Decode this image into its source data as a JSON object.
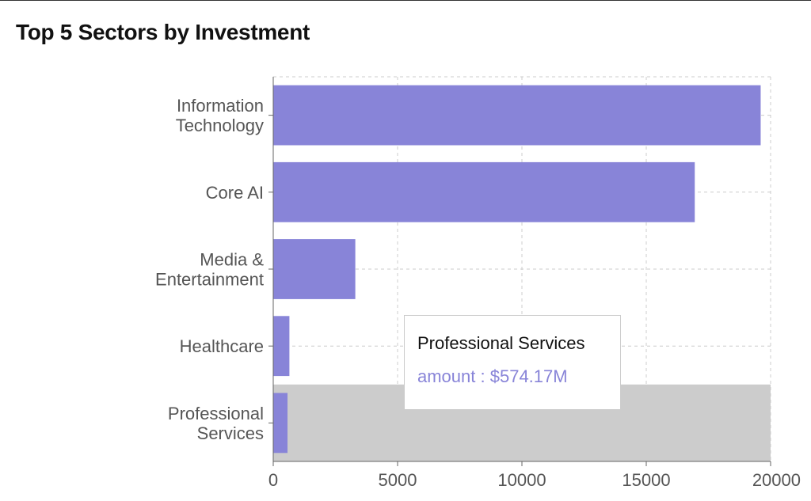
{
  "title": "Top 5 Sectors by Investment",
  "colors": {
    "bar": "#8884d8",
    "highlight": "#cccccc",
    "grid": "#cccccc",
    "axis": "#666666"
  },
  "chart_data": {
    "type": "bar",
    "orientation": "horizontal",
    "categories": [
      [
        "Information",
        "Technology"
      ],
      [
        "Core AI"
      ],
      [
        "Media &",
        "Entertainment"
      ],
      [
        "Healthcare"
      ],
      [
        "Professional",
        "Services"
      ]
    ],
    "values": [
      19600,
      16950,
      3300,
      650,
      574.17
    ],
    "xlim": [
      0,
      20000
    ],
    "xticks": [
      0,
      5000,
      10000,
      15000,
      20000
    ],
    "grid": true,
    "highlighted_category_index": 4
  },
  "tooltip": {
    "title": "Professional Services",
    "label": "amount",
    "value": "$574.17M"
  }
}
